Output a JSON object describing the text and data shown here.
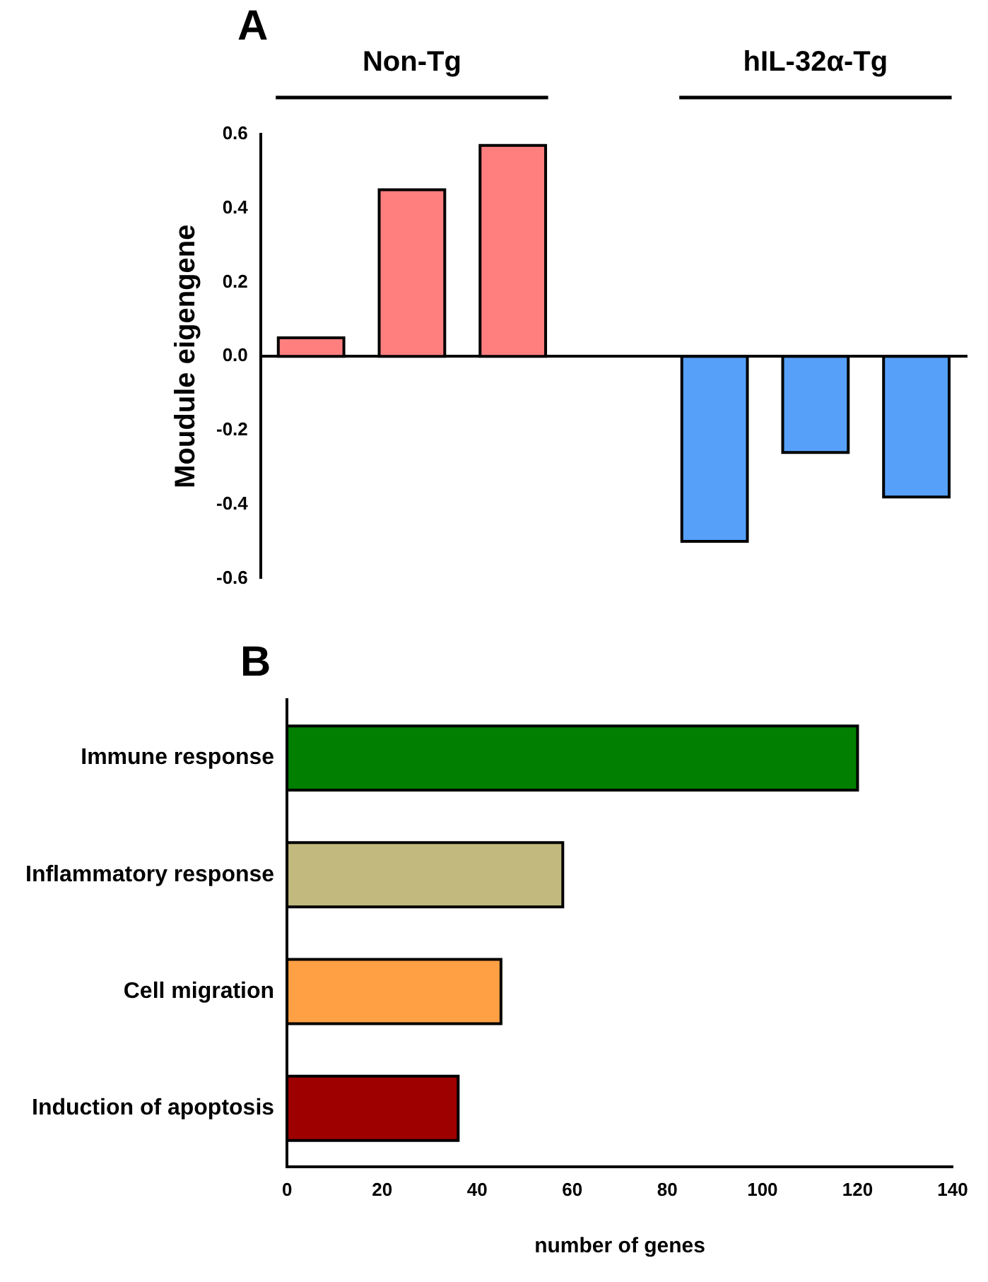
{
  "chart_data": [
    {
      "type": "bar",
      "title": "A",
      "ylabel": "Moudule eigengene",
      "categories": [
        null,
        null,
        null,
        null,
        null,
        null,
        null
      ],
      "values": [
        0.05,
        0.45,
        0.57,
        null,
        -0.5,
        -0.26,
        -0.38
      ],
      "colors": [
        "#ff7f7f",
        "#ff7f7f",
        "#ff7f7f",
        null,
        "#56a0fa",
        "#56a0fa",
        "#56a0fa"
      ],
      "ylim": [
        -0.6,
        0.6
      ],
      "yticks": [
        {
          "value": -0.6,
          "label": "-0.6"
        },
        {
          "value": -0.4,
          "label": "-0.4"
        },
        {
          "value": -0.2,
          "label": "-0.2"
        },
        {
          "value": 0,
          "label": "0.0"
        },
        {
          "value": 0.2,
          "label": "0.2"
        },
        {
          "value": 0.4,
          "label": "0.4"
        },
        {
          "value": 0.6,
          "label": "0.6"
        }
      ],
      "annotations": [
        "Non-Tg",
        "hIL-32α-Tg"
      ]
    },
    {
      "type": "bar",
      "orientation": "horizontal",
      "title": "B",
      "xlabel": "number of genes",
      "categories": [
        "Immune response",
        "Inflammatory response",
        "Cell migration",
        "Induction of apoptosis"
      ],
      "values": [
        120,
        58,
        45,
        36
      ],
      "colors": [
        "#007f00",
        "#c2b97f",
        "#ffa044",
        "#9e0000"
      ],
      "xlim": [
        0,
        140
      ],
      "xticks": [
        0,
        20,
        40,
        60,
        80,
        100,
        120,
        140
      ]
    }
  ]
}
